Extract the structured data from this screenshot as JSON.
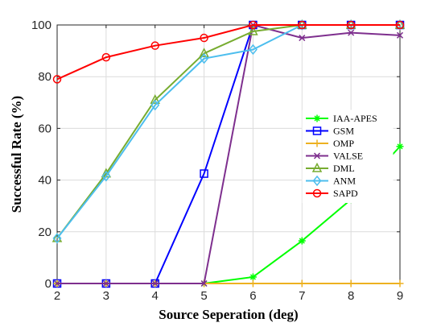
{
  "chart_data": {
    "type": "line",
    "title": "",
    "xlabel": "Source Seperation (deg)",
    "ylabel": "Successful Rate (%)",
    "xlim": [
      2,
      9
    ],
    "ylim": [
      0,
      100
    ],
    "xticks": [
      2,
      3,
      4,
      5,
      6,
      7,
      8,
      9
    ],
    "yticks": [
      0,
      20,
      40,
      60,
      80,
      100
    ],
    "grid": true,
    "legend_position": "center-right",
    "x": [
      2,
      3,
      4,
      5,
      6,
      7,
      8,
      9
    ],
    "series": [
      {
        "name": "IAA-APES",
        "color": "#00ff00",
        "marker": "star",
        "values": [
          0,
          0,
          0,
          0,
          2.5,
          16.5,
          32.5,
          53
        ]
      },
      {
        "name": "GSM",
        "color": "#0000ff",
        "marker": "square",
        "values": [
          0,
          0,
          0,
          42.5,
          100,
          100,
          100,
          100
        ]
      },
      {
        "name": "OMP",
        "color": "#edb120",
        "marker": "plus",
        "values": [
          0,
          0,
          0,
          0,
          0,
          0,
          0,
          0
        ]
      },
      {
        "name": "VALSE",
        "color": "#7e2f8e",
        "marker": "x",
        "values": [
          0,
          0,
          0,
          0,
          100,
          95,
          97,
          96
        ]
      },
      {
        "name": "DML",
        "color": "#77ac30",
        "marker": "triangle",
        "values": [
          17.5,
          42.5,
          71,
          89,
          97.5,
          100,
          100,
          100
        ]
      },
      {
        "name": "ANM",
        "color": "#4dbeee",
        "marker": "diamond",
        "values": [
          17.5,
          41.5,
          69,
          87,
          90.5,
          100,
          100,
          100
        ]
      },
      {
        "name": "SAPD",
        "color": "#ff0000",
        "marker": "circle",
        "values": [
          79,
          87.5,
          92,
          95,
          100,
          100,
          100,
          100
        ]
      }
    ]
  }
}
